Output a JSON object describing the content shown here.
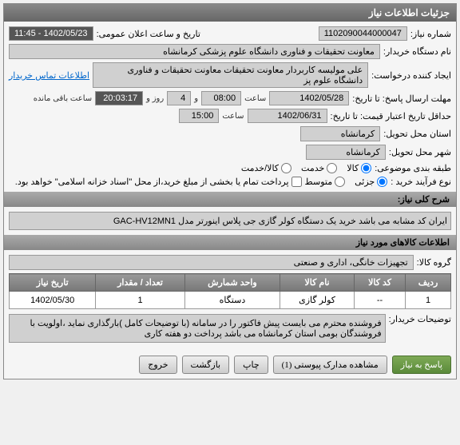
{
  "panel_title": "جزئیات اطلاعات نیاز",
  "fields": {
    "need_no_lbl": "شماره نیاز:",
    "need_no": "1102090044000047",
    "announce_lbl": "تاریخ و ساعت اعلان عمومی:",
    "announce_val": "1402/05/23 - 11:45",
    "buyer_name_lbl": "نام دستگاه خریدار:",
    "buyer_name": "معاونت تحقیقات و فناوری دانشگاه علوم پزشکی کرمانشاه",
    "creator_lbl": "ایجاد کننده درخواست:",
    "creator": "علی مولیسه کاربردار معاونت تحقیقات معاونت تحقیقات و فناوری دانشگاه علوم پز",
    "contact_link": "اطلاعات تماس خریدار",
    "send_deadline_lbl": "مهلت ارسال پاسخ: تا تاریخ:",
    "send_date": "1402/05/28",
    "time_lbl": "ساعت",
    "send_time": "08:00",
    "and_lbl": "و",
    "days": "4",
    "days_lbl": "روز و",
    "remain_time": "20:03:17",
    "remain_lbl": "ساعت باقی مانده",
    "valid_lbl": "حداقل تاریخ اعتبار قیمت: تا تاریخ:",
    "valid_date": "1402/06/31",
    "valid_time": "15:00",
    "province_lbl": "استان محل تحویل:",
    "province": "کرمانشاه",
    "city_lbl": "شهر محل تحویل:",
    "city": "کرمانشاه",
    "category_lbl": "طبقه بندی موضوعی:",
    "cat_goods": "کالا",
    "cat_service": "خدمت",
    "cat_goods_service": "کالا/خدمت",
    "process_lbl": "نوع فرآیند خرید :",
    "proc_partial": "جزئی",
    "proc_medium": "متوسط",
    "payment_note": "پرداخت تمام یا بخشی از مبلغ خرید،از محل \"اسناد خزانه اسلامی\" خواهد بود.",
    "desc_title": "شرح کلی نیاز:",
    "desc_text": "ایران کد مشابه می باشد خرید یک دستگاه کولر گازی جی پلاس اینورتر مدل GAC-HV12MN1",
    "goods_section": "اطلاعات کالاهای مورد نیاز",
    "goods_group_lbl": "گروه کالا:",
    "goods_group": "تجهیزات خانگی، اداری و صنعتی",
    "buyer_notes_lbl": "توضیحات خریدار:",
    "buyer_notes": "فروشنده محترم می بایست پیش فاکتور را در سامانه (با توضیحات کامل )بارگذاری نماید ،اولویت با فروشندگان بومی استان کرمانشاه می باشد پرداخت دو هفته کاری"
  },
  "table": {
    "headers": [
      "ردیف",
      "کد کالا",
      "نام کالا",
      "واحد شمارش",
      "تعداد / مقدار",
      "تاریخ نیاز"
    ],
    "rows": [
      [
        "1",
        "--",
        "کولر گازی",
        "دستگاه",
        "1",
        "1402/05/30"
      ]
    ]
  },
  "buttons": {
    "respond": "پاسخ به نیاز",
    "attachments": "مشاهده مدارک پیوستی (1)",
    "print": "چاپ",
    "back": "بازگشت",
    "exit": "خروج"
  }
}
